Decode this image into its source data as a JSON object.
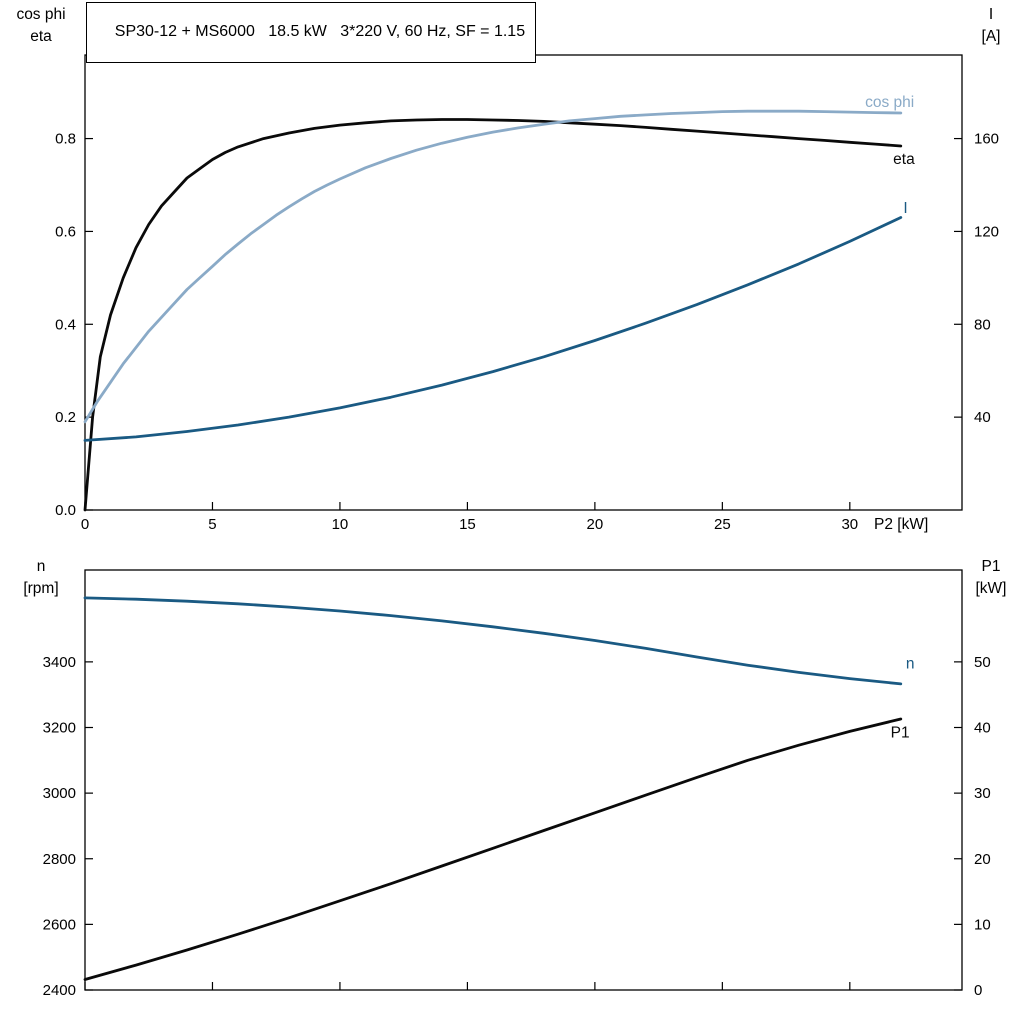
{
  "colors": {
    "frame": "#000000",
    "eta_black": "#0a0a0a",
    "light_blue": "#8aaac7",
    "dark_blue": "#1a5a83"
  },
  "chart_data": [
    {
      "type": "line",
      "title": "SP30-12 + MS6000   18.5 kW   3*220 V, 60 Hz, SF = 1.15",
      "grid": false,
      "x": {
        "min": 0,
        "max": 34.4,
        "ticks": [
          0,
          5,
          10,
          15,
          20,
          25,
          30
        ],
        "tick_labels": [
          "0",
          "5",
          "10",
          "15",
          "20",
          "25",
          "30"
        ],
        "label": "P2 [kW]"
      },
      "y_left": {
        "min": 0,
        "max": 0.98,
        "ticks": [
          0,
          0.2,
          0.4,
          0.6,
          0.8
        ],
        "tick_labels": [
          "0.0",
          "0.2",
          "0.4",
          "0.6",
          "0.8"
        ],
        "header": [
          "cos phi",
          "eta"
        ]
      },
      "y_right": {
        "min": 0,
        "max": 196,
        "ticks": [
          40,
          80,
          120,
          160
        ],
        "tick_labels": [
          "40",
          "80",
          "120",
          "160"
        ],
        "header": [
          "I",
          "[A]"
        ]
      },
      "series": [
        {
          "name": "eta",
          "label": "eta",
          "axis": "left",
          "color": "#0a0a0a",
          "label_pos": {
            "x": 31.7,
            "y": 0.745
          },
          "points": [
            [
              0,
              0
            ],
            [
              0.3,
              0.2
            ],
            [
              0.6,
              0.33
            ],
            [
              1,
              0.42
            ],
            [
              1.5,
              0.5
            ],
            [
              2,
              0.565
            ],
            [
              2.5,
              0.615
            ],
            [
              3,
              0.655
            ],
            [
              3.5,
              0.685
            ],
            [
              4,
              0.715
            ],
            [
              4.5,
              0.735
            ],
            [
              5,
              0.755
            ],
            [
              5.5,
              0.77
            ],
            [
              6,
              0.782
            ],
            [
              7,
              0.8
            ],
            [
              8,
              0.812
            ],
            [
              9,
              0.822
            ],
            [
              10,
              0.829
            ],
            [
              11,
              0.834
            ],
            [
              12,
              0.838
            ],
            [
              13,
              0.84
            ],
            [
              14,
              0.841
            ],
            [
              15,
              0.841
            ],
            [
              16,
              0.84
            ],
            [
              17,
              0.839
            ],
            [
              18,
              0.837
            ],
            [
              19,
              0.834
            ],
            [
              20,
              0.831
            ],
            [
              21,
              0.828
            ],
            [
              22,
              0.824
            ],
            [
              23,
              0.82
            ],
            [
              24,
              0.816
            ],
            [
              25,
              0.812
            ],
            [
              26,
              0.808
            ],
            [
              27,
              0.804
            ],
            [
              28,
              0.8
            ],
            [
              29,
              0.796
            ],
            [
              30,
              0.792
            ],
            [
              31,
              0.788
            ],
            [
              32,
              0.784
            ]
          ]
        },
        {
          "name": "cos-phi",
          "label": "cos phi",
          "axis": "left",
          "color": "#8aaac7",
          "label_pos": {
            "x": 30.6,
            "y": 0.868
          },
          "points": [
            [
              0,
              0.19
            ],
            [
              0.5,
              0.235
            ],
            [
              1,
              0.275
            ],
            [
              1.5,
              0.315
            ],
            [
              2,
              0.35
            ],
            [
              2.5,
              0.385
            ],
            [
              3,
              0.415
            ],
            [
              3.5,
              0.445
            ],
            [
              4,
              0.475
            ],
            [
              4.5,
              0.5
            ],
            [
              5,
              0.525
            ],
            [
              5.5,
              0.55
            ],
            [
              6,
              0.573
            ],
            [
              6.5,
              0.595
            ],
            [
              7,
              0.615
            ],
            [
              7.5,
              0.635
            ],
            [
              8,
              0.653
            ],
            [
              8.5,
              0.67
            ],
            [
              9,
              0.686
            ],
            [
              9.5,
              0.7
            ],
            [
              10,
              0.713
            ],
            [
              11,
              0.737
            ],
            [
              12,
              0.757
            ],
            [
              13,
              0.775
            ],
            [
              14,
              0.79
            ],
            [
              15,
              0.803
            ],
            [
              16,
              0.814
            ],
            [
              17,
              0.823
            ],
            [
              18,
              0.831
            ],
            [
              19,
              0.838
            ],
            [
              20,
              0.843
            ],
            [
              21,
              0.848
            ],
            [
              22,
              0.851
            ],
            [
              23,
              0.854
            ],
            [
              24,
              0.856
            ],
            [
              25,
              0.858
            ],
            [
              26,
              0.859
            ],
            [
              27,
              0.859
            ],
            [
              28,
              0.859
            ],
            [
              29,
              0.858
            ],
            [
              30,
              0.857
            ],
            [
              31,
              0.856
            ],
            [
              32,
              0.855
            ]
          ]
        },
        {
          "name": "current",
          "label": "I",
          "axis": "right",
          "color": "#1a5a83",
          "label_pos": {
            "x": 32.1,
            "y": 128
          },
          "points": [
            [
              0,
              30
            ],
            [
              2,
              31.5
            ],
            [
              4,
              33.8
            ],
            [
              6,
              36.6
            ],
            [
              8,
              40
            ],
            [
              10,
              44
            ],
            [
              12,
              48.6
            ],
            [
              14,
              53.8
            ],
            [
              16,
              59.6
            ],
            [
              18,
              66
            ],
            [
              20,
              73
            ],
            [
              22,
              80.5
            ],
            [
              24,
              88.5
            ],
            [
              26,
              97
            ],
            [
              28,
              106
            ],
            [
              30,
              115.7
            ],
            [
              32,
              126
            ]
          ]
        }
      ]
    },
    {
      "type": "line",
      "title": "",
      "grid": false,
      "x": {
        "min": 0,
        "max": 34.4,
        "ticks": [
          0,
          5,
          10,
          15,
          20,
          25,
          30
        ],
        "tick_labels": [],
        "label": ""
      },
      "y_left": {
        "min": 2400,
        "max": 3680,
        "ticks": [
          2400,
          2600,
          2800,
          3000,
          3200,
          3400
        ],
        "tick_labels": [
          "2400",
          "2600",
          "2800",
          "3000",
          "3200",
          "3400"
        ],
        "header": [
          "n",
          "[rpm]"
        ]
      },
      "y_right": {
        "min": 0,
        "max": 64,
        "ticks": [
          0,
          10,
          20,
          30,
          40,
          50
        ],
        "tick_labels": [
          "0",
          "10",
          "20",
          "30",
          "40",
          "50"
        ],
        "header": [
          "P1",
          "[kW]"
        ]
      },
      "series": [
        {
          "name": "speed",
          "label": "n",
          "axis": "left",
          "color": "#1a5a83",
          "label_pos": {
            "x": 32.2,
            "y": 3380
          },
          "points": [
            [
              0,
              3595
            ],
            [
              2,
              3591
            ],
            [
              4,
              3585
            ],
            [
              6,
              3577
            ],
            [
              8,
              3567
            ],
            [
              10,
              3555
            ],
            [
              12,
              3541
            ],
            [
              14,
              3525
            ],
            [
              16,
              3507
            ],
            [
              18,
              3487
            ],
            [
              20,
              3465
            ],
            [
              22,
              3441
            ],
            [
              24,
              3415
            ],
            [
              26,
              3390
            ],
            [
              28,
              3368
            ],
            [
              30,
              3349
            ],
            [
              32,
              3333
            ]
          ]
        },
        {
          "name": "p1-power",
          "label": "P1",
          "axis": "right",
          "color": "#0a0a0a",
          "label_pos": {
            "x": 31.6,
            "y": 38.5
          },
          "points": [
            [
              0,
              1.6
            ],
            [
              2,
              3.8
            ],
            [
              4,
              6.1
            ],
            [
              6,
              8.5
            ],
            [
              8,
              11
            ],
            [
              10,
              13.6
            ],
            [
              12,
              16.2
            ],
            [
              14,
              18.9
            ],
            [
              16,
              21.6
            ],
            [
              18,
              24.3
            ],
            [
              20,
              27
            ],
            [
              22,
              29.7
            ],
            [
              24,
              32.4
            ],
            [
              26,
              35
            ],
            [
              28,
              37.3
            ],
            [
              30,
              39.4
            ],
            [
              32,
              41.3
            ]
          ]
        }
      ]
    }
  ]
}
